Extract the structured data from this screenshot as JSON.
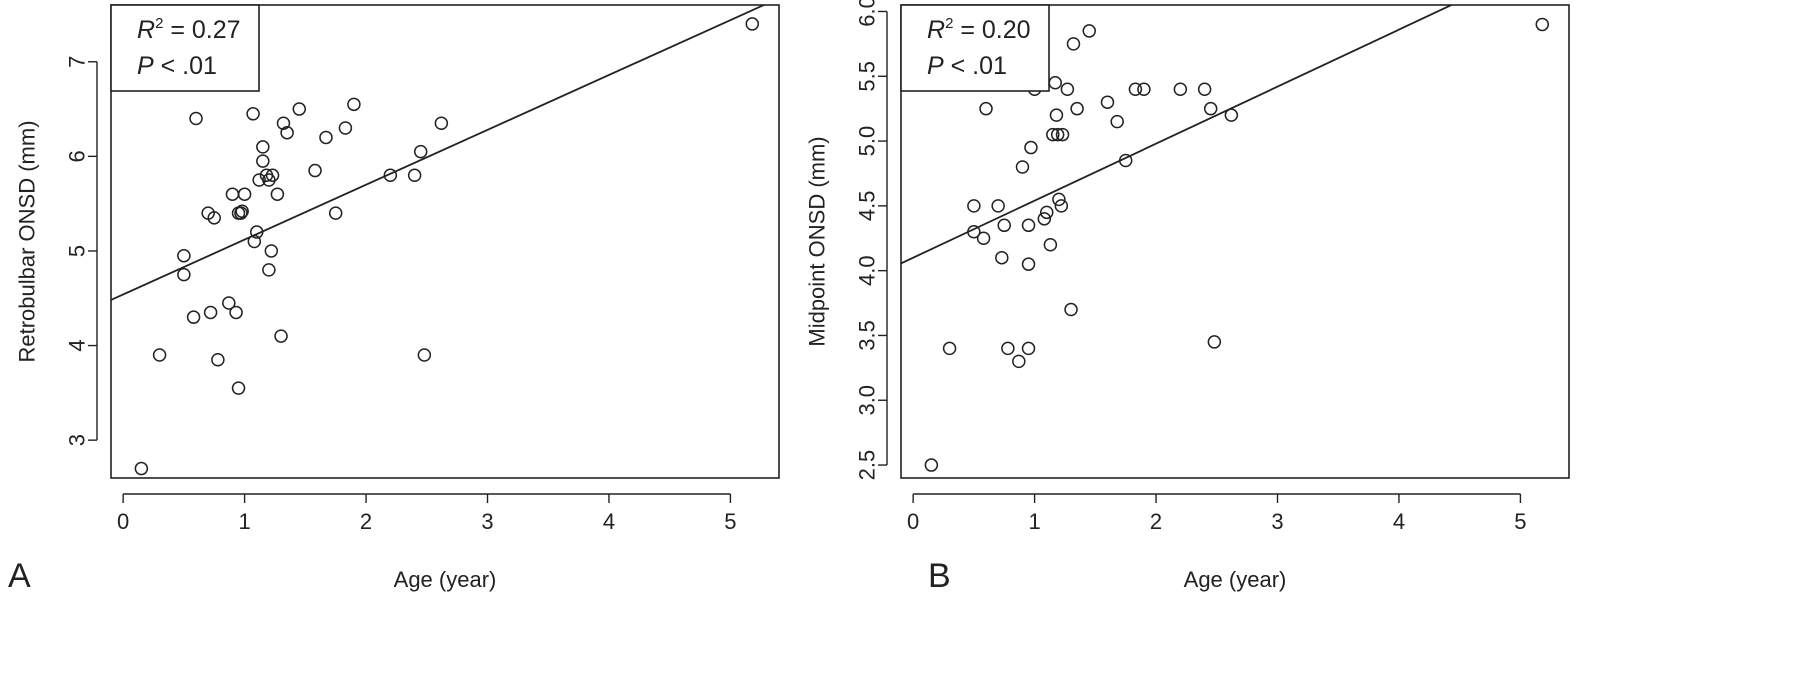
{
  "chart_data": [
    {
      "type": "scatter",
      "panel": "A",
      "xlabel": "Age (year)",
      "ylabel": "Retrobulbar ONSD (mm)",
      "xlim": [
        -0.1,
        5.4
      ],
      "ylim": [
        2.6,
        7.6
      ],
      "xticks": [
        0,
        1,
        2,
        3,
        4,
        5
      ],
      "yticks": [
        3,
        4,
        5,
        6,
        7
      ],
      "stats": {
        "r2_symbol": "R",
        "r2_sup": "2",
        "r2_value": " = 0.27",
        "p_symbol": "P",
        "p_value": " < .01"
      },
      "fit": {
        "intercept": 4.54,
        "slope": 0.58
      },
      "points": [
        [
          0.15,
          2.7
        ],
        [
          0.3,
          3.9
        ],
        [
          0.5,
          4.95
        ],
        [
          0.5,
          4.75
        ],
        [
          0.58,
          4.3
        ],
        [
          0.6,
          6.4
        ],
        [
          0.7,
          5.4
        ],
        [
          0.72,
          4.35
        ],
        [
          0.75,
          5.35
        ],
        [
          0.78,
          3.85
        ],
        [
          0.87,
          4.45
        ],
        [
          0.9,
          5.6
        ],
        [
          0.93,
          4.35
        ],
        [
          0.95,
          5.4
        ],
        [
          0.95,
          3.55
        ],
        [
          0.97,
          5.4
        ],
        [
          0.98,
          5.42
        ],
        [
          1.0,
          5.6
        ],
        [
          1.07,
          6.45
        ],
        [
          1.08,
          5.1
        ],
        [
          1.1,
          5.2
        ],
        [
          1.12,
          5.75
        ],
        [
          1.15,
          5.95
        ],
        [
          1.15,
          6.1
        ],
        [
          1.18,
          5.8
        ],
        [
          1.2,
          5.75
        ],
        [
          1.2,
          4.8
        ],
        [
          1.22,
          5.0
        ],
        [
          1.23,
          5.8
        ],
        [
          1.27,
          5.6
        ],
        [
          1.3,
          4.1
        ],
        [
          1.32,
          6.35
        ],
        [
          1.35,
          6.25
        ],
        [
          1.45,
          6.5
        ],
        [
          1.58,
          5.85
        ],
        [
          1.67,
          6.2
        ],
        [
          1.75,
          5.4
        ],
        [
          1.83,
          6.3
        ],
        [
          1.9,
          6.55
        ],
        [
          2.2,
          5.8
        ],
        [
          2.4,
          5.8
        ],
        [
          2.45,
          6.05
        ],
        [
          2.48,
          3.9
        ],
        [
          2.62,
          6.35
        ],
        [
          5.18,
          7.4
        ]
      ]
    },
    {
      "type": "scatter",
      "panel": "B",
      "xlabel": "Age (year)",
      "ylabel": "Midpoint ONSD (mm)",
      "xlim": [
        -0.1,
        5.4
      ],
      "ylim": [
        2.4,
        6.05
      ],
      "xticks": [
        0,
        1,
        2,
        3,
        4,
        5
      ],
      "yticks": [
        2.5,
        3.0,
        3.5,
        4.0,
        4.5,
        5.0,
        5.5,
        6.0
      ],
      "stats": {
        "r2_symbol": "R",
        "r2_sup": "2",
        "r2_value": " = 0.20",
        "p_symbol": "P",
        "p_value": " < .01"
      },
      "fit": {
        "intercept": 4.1,
        "slope": 0.44
      },
      "points": [
        [
          0.15,
          2.5
        ],
        [
          0.3,
          3.4
        ],
        [
          0.5,
          4.5
        ],
        [
          0.5,
          4.3
        ],
        [
          0.58,
          4.25
        ],
        [
          0.6,
          5.25
        ],
        [
          0.7,
          4.5
        ],
        [
          0.73,
          4.1
        ],
        [
          0.75,
          4.35
        ],
        [
          0.78,
          3.4
        ],
        [
          0.87,
          3.3
        ],
        [
          0.9,
          4.8
        ],
        [
          0.95,
          4.05
        ],
        [
          0.95,
          4.35
        ],
        [
          0.95,
          3.4
        ],
        [
          0.97,
          4.95
        ],
        [
          1.0,
          5.4
        ],
        [
          1.08,
          4.4
        ],
        [
          1.1,
          4.45
        ],
        [
          1.13,
          4.2
        ],
        [
          1.15,
          5.05
        ],
        [
          1.17,
          5.45
        ],
        [
          1.18,
          5.2
        ],
        [
          1.19,
          5.05
        ],
        [
          1.2,
          4.55
        ],
        [
          1.22,
          4.5
        ],
        [
          1.23,
          5.05
        ],
        [
          1.27,
          5.4
        ],
        [
          1.3,
          3.7
        ],
        [
          1.32,
          5.75
        ],
        [
          1.35,
          5.25
        ],
        [
          1.45,
          5.85
        ],
        [
          1.6,
          5.3
        ],
        [
          1.68,
          5.15
        ],
        [
          1.75,
          4.85
        ],
        [
          1.83,
          5.4
        ],
        [
          1.9,
          5.4
        ],
        [
          2.2,
          5.4
        ],
        [
          2.4,
          5.4
        ],
        [
          2.45,
          5.25
        ],
        [
          2.48,
          3.45
        ],
        [
          2.62,
          5.2
        ],
        [
          5.18,
          5.9
        ]
      ]
    }
  ]
}
